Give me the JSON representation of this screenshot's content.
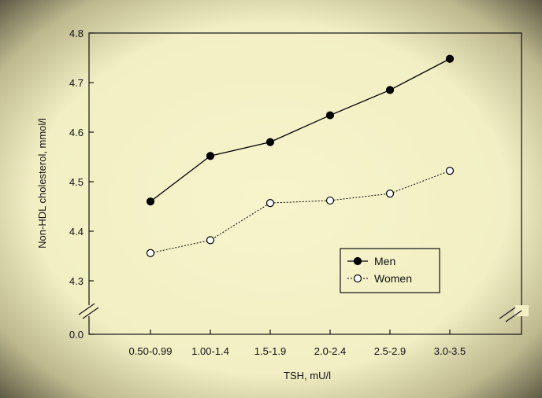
{
  "chart_data": {
    "type": "line",
    "title": "",
    "xlabel": "TSH, mU/l",
    "ylabel": "Non-HDL cholesterol, mmol/l",
    "categories": [
      "0.50-0.99",
      "1.00-1.4",
      "1.5-1.9",
      "2.0-2.4",
      "2.5-2.9",
      "3.0-3.5"
    ],
    "y_ticks": [
      "0.0",
      "4.3",
      "4.4",
      "4.5",
      "4.6",
      "4.7",
      "4.8"
    ],
    "ylim": [
      4.3,
      4.8
    ],
    "y_axis_break": true,
    "grid": false,
    "legend_position": "lower-right",
    "series": [
      {
        "name": "Men",
        "style": "solid",
        "marker": "filled-circle",
        "color": "#000000",
        "values": [
          4.46,
          4.552,
          4.58,
          4.634,
          4.685,
          4.748
        ]
      },
      {
        "name": "Women",
        "style": "dotted",
        "marker": "open-circle",
        "color": "#000000",
        "values": [
          4.356,
          4.382,
          4.457,
          4.462,
          4.476,
          4.522
        ]
      }
    ]
  }
}
